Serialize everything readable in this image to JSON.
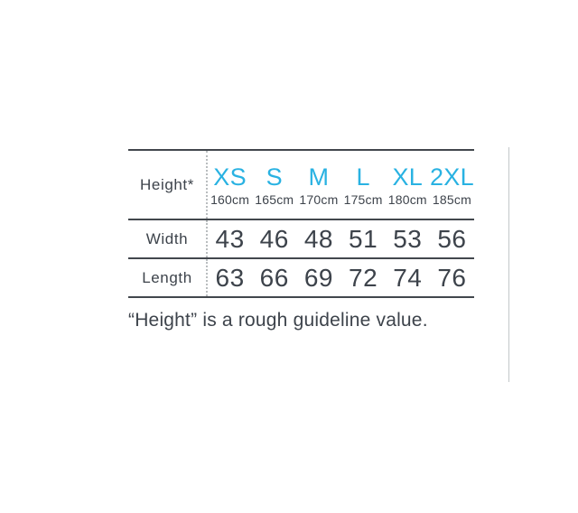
{
  "table": {
    "corner_label": "Height*",
    "sizes": [
      {
        "label": "XS",
        "height": "160cm"
      },
      {
        "label": "S",
        "height": "165cm"
      },
      {
        "label": "M",
        "height": "170cm"
      },
      {
        "label": "L",
        "height": "175cm"
      },
      {
        "label": "XL",
        "height": "180cm"
      },
      {
        "label": "2XL",
        "height": "185cm"
      }
    ],
    "rows": [
      {
        "label": "Width",
        "values": [
          "43",
          "46",
          "48",
          "51",
          "53",
          "56"
        ]
      },
      {
        "label": "Length",
        "values": [
          "63",
          "66",
          "69",
          "72",
          "74",
          "76"
        ]
      }
    ]
  },
  "footnote": "“Height” is a rough guideline value.",
  "colors": {
    "accent": "#29b2e2",
    "text": "#3d434b",
    "rule": "#42474d",
    "dotted_separator": "#b9bdbf",
    "side_divider": "#c3c7c9",
    "background": "#ffffff"
  }
}
